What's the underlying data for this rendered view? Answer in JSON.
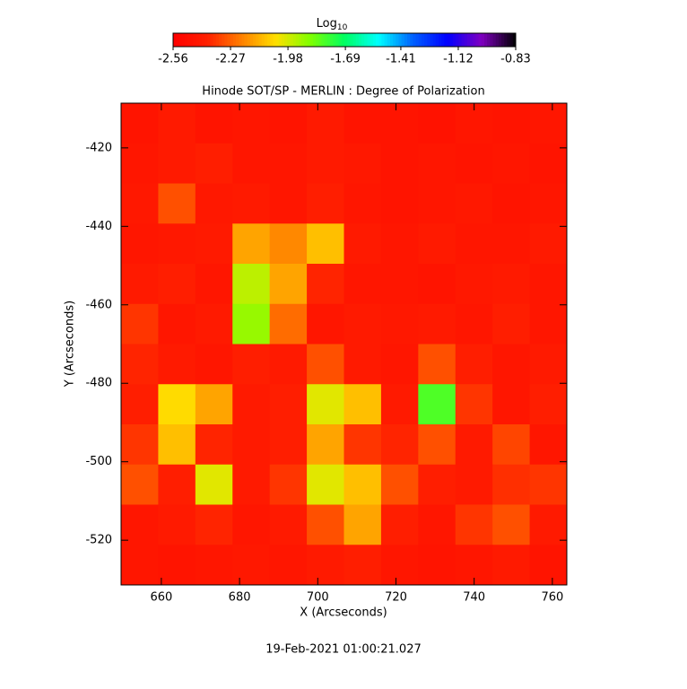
{
  "chart_data": {
    "type": "heatmap",
    "title": "Hinode SOT/SP - MERLIN : Degree of Polarization",
    "x_label": "X (Arcseconds)",
    "y_label": "Y (Arcseconds)",
    "footer": "19-Feb-2021 01:00:21.027",
    "colorbar_label": {
      "base": "Log",
      "subscript": "10"
    },
    "colorbar_lim": [
      -2.56,
      -0.83
    ],
    "colorbar_ticks": [
      -2.56,
      -2.27,
      -1.98,
      -1.69,
      -1.41,
      -1.12,
      -0.83
    ],
    "colormap": [
      "#ff0000",
      "#ff2000",
      "#ff8000",
      "#ffe000",
      "#80ff00",
      "#00ff60",
      "#00ffff",
      "#0060ff",
      "#0000ff",
      "#8000c0",
      "#000000"
    ],
    "xlim": [
      649.7,
      763.7
    ],
    "ylim": [
      -408.6,
      -531.4
    ],
    "xticks": [
      660,
      680,
      700,
      720,
      740,
      760
    ],
    "yticks": [
      -420,
      -440,
      -460,
      -480,
      -500,
      -520
    ],
    "z": [
      [
        -2.45,
        -2.42,
        -2.45,
        -2.44,
        -2.45,
        -2.42,
        -2.45,
        -2.45,
        -2.46,
        -2.44,
        -2.45,
        -2.44
      ],
      [
        -2.44,
        -2.42,
        -2.4,
        -2.44,
        -2.44,
        -2.42,
        -2.43,
        -2.45,
        -2.44,
        -2.45,
        -2.44,
        -2.45
      ],
      [
        -2.43,
        -2.3,
        -2.43,
        -2.42,
        -2.44,
        -2.4,
        -2.44,
        -2.45,
        -2.44,
        -2.43,
        -2.45,
        -2.44
      ],
      [
        -2.44,
        -2.43,
        -2.42,
        -2.15,
        -2.2,
        -2.1,
        -2.42,
        -2.44,
        -2.42,
        -2.44,
        -2.44,
        -2.42
      ],
      [
        -2.42,
        -2.4,
        -2.44,
        -1.95,
        -2.15,
        -2.38,
        -2.44,
        -2.44,
        -2.45,
        -2.43,
        -2.42,
        -2.44
      ],
      [
        -2.35,
        -2.44,
        -2.42,
        -1.9,
        -2.25,
        -2.44,
        -2.42,
        -2.43,
        -2.42,
        -2.44,
        -2.4,
        -2.44
      ],
      [
        -2.38,
        -2.42,
        -2.44,
        -2.4,
        -2.42,
        -2.3,
        -2.42,
        -2.44,
        -2.3,
        -2.4,
        -2.44,
        -2.42
      ],
      [
        -2.4,
        -2.05,
        -2.15,
        -2.42,
        -2.4,
        -2.0,
        -2.1,
        -2.42,
        -1.8,
        -2.35,
        -2.44,
        -2.4
      ],
      [
        -2.35,
        -2.1,
        -2.38,
        -2.42,
        -2.4,
        -2.15,
        -2.35,
        -2.38,
        -2.3,
        -2.42,
        -2.32,
        -2.44
      ],
      [
        -2.3,
        -2.4,
        -2.0,
        -2.42,
        -2.35,
        -2.0,
        -2.1,
        -2.3,
        -2.4,
        -2.42,
        -2.36,
        -2.35
      ],
      [
        -2.44,
        -2.42,
        -2.38,
        -2.44,
        -2.42,
        -2.3,
        -2.15,
        -2.4,
        -2.44,
        -2.35,
        -2.3,
        -2.42
      ],
      [
        -2.44,
        -2.45,
        -2.44,
        -2.43,
        -2.44,
        -2.42,
        -2.4,
        -2.44,
        -2.45,
        -2.44,
        -2.42,
        -2.45
      ]
    ]
  }
}
